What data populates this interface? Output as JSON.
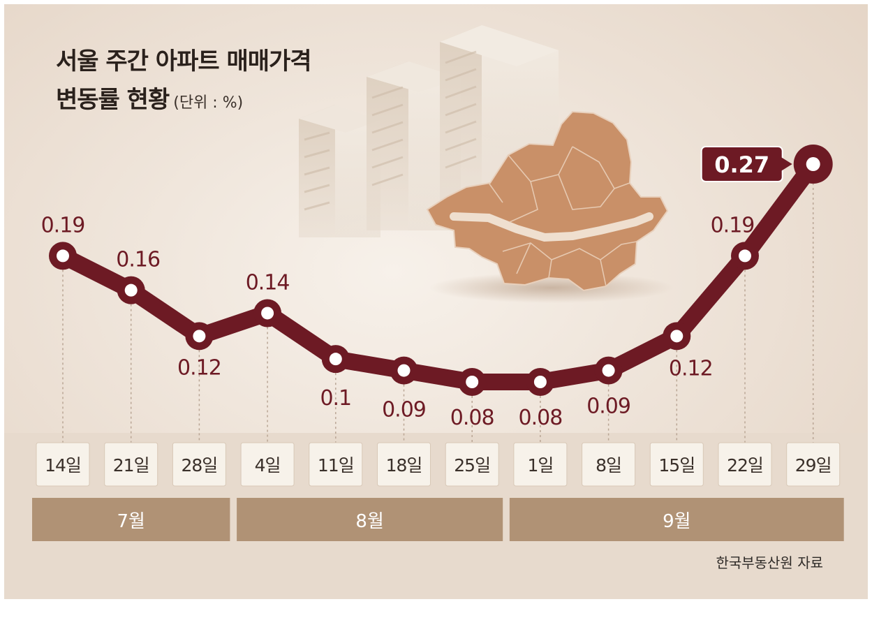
{
  "title_line1": "서울 주간 아파트 매매가격",
  "title_line2": "변동률 현황",
  "unit": "(단위 : %)",
  "source": "한국부동산원 자료",
  "colors": {
    "line": "#6d1a24",
    "label": "#6d1a24",
    "background": "#eee3d8",
    "day_box": "#f7f2ea",
    "month_bar": "#b09275",
    "map": "#c99068"
  },
  "chart_data": {
    "type": "line",
    "categories": [
      "14일",
      "21일",
      "28일",
      "4일",
      "11일",
      "18일",
      "25일",
      "1일",
      "8일",
      "15일",
      "22일",
      "29일"
    ],
    "values": [
      0.19,
      0.16,
      0.12,
      0.14,
      0.1,
      0.09,
      0.08,
      0.08,
      0.09,
      0.12,
      0.19,
      0.27
    ],
    "value_labels": [
      "0.19",
      "0.16",
      "0.12",
      "0.14",
      "0.1",
      "0.09",
      "0.08",
      "0.08",
      "0.09",
      "0.12",
      "0.19",
      "0.27"
    ],
    "months": [
      {
        "label": "7월",
        "start": 0,
        "end": 2
      },
      {
        "label": "8월",
        "start": 3,
        "end": 6
      },
      {
        "label": "9월",
        "start": 7,
        "end": 11
      }
    ],
    "highlight_index": 11,
    "grid": false,
    "legend": "none"
  }
}
